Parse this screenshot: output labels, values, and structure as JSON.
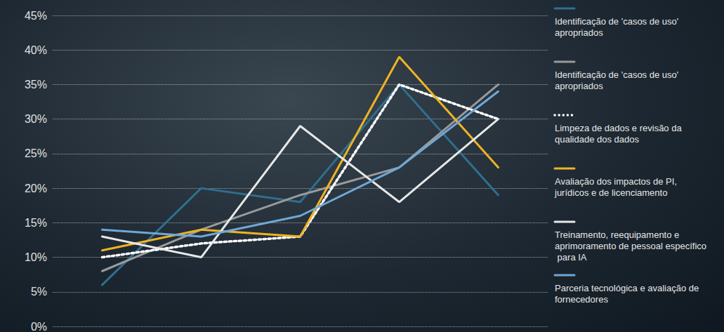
{
  "chart_data": {
    "type": "line",
    "categories": [
      null,
      null,
      null,
      null,
      null
    ],
    "series": [
      {
        "name": "Identificação de 'casos de uso' apropriados",
        "color": "#2f6f8f",
        "line_style": "solid",
        "values": [
          6,
          20,
          18,
          35,
          19
        ]
      },
      {
        "name": "Identificação de 'casos de uso' apropriados",
        "color": "#9a9a9a",
        "line_style": "solid",
        "values": [
          8,
          14,
          19,
          23,
          35
        ]
      },
      {
        "name": "Limpeza de dados e revisão da qualidade dos dados",
        "color": "#ffffff",
        "line_style": "dotted",
        "values": [
          10,
          12,
          13,
          35,
          30
        ]
      },
      {
        "name": "Avaliação dos impactos de PI, jurídicos e de licenciamento",
        "color": "#f0b323",
        "line_style": "solid",
        "values": [
          11,
          14,
          13,
          39,
          23
        ]
      },
      {
        "name": "Treinamento, reequipamento e aprimoramento de pessoal específico para IA",
        "color": "#e8e8e8",
        "line_style": "solid",
        "values": [
          13,
          10,
          29,
          18,
          30
        ]
      },
      {
        "name": "Parceria tecnológica e avaliação de fornecedores",
        "color": "#6fa8d6",
        "line_style": "solid",
        "values": [
          14,
          13,
          16,
          23,
          34
        ]
      }
    ],
    "ylim": [
      0,
      45
    ],
    "yticks": [
      {
        "value": 0,
        "label": "0%"
      },
      {
        "value": 5,
        "label": "5%"
      },
      {
        "value": 10,
        "label": "10%"
      },
      {
        "value": 15,
        "label": "15%"
      },
      {
        "value": 20,
        "label": "20%"
      },
      {
        "value": 25,
        "label": "25%"
      },
      {
        "value": 30,
        "label": "30%"
      },
      {
        "value": 35,
        "label": "35%"
      },
      {
        "value": 40,
        "label": "40%"
      },
      {
        "value": 45,
        "label": "45%"
      }
    ],
    "grid": true,
    "tick_labels": "y",
    "legend": "right"
  }
}
